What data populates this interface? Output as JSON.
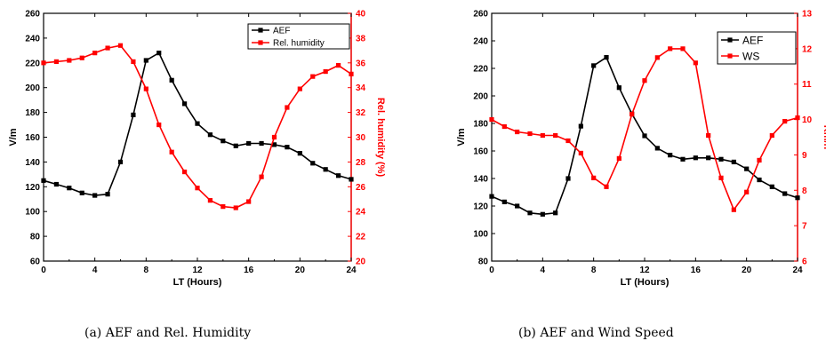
{
  "chart_data": [
    {
      "type": "line",
      "x": [
        0,
        1,
        2,
        3,
        4,
        5,
        6,
        7,
        8,
        9,
        10,
        11,
        12,
        13,
        14,
        15,
        16,
        17,
        18,
        19,
        20,
        21,
        22,
        23,
        24
      ],
      "xlabel": "LT (Hours)",
      "xlim": [
        0,
        24
      ],
      "xticks": [
        0,
        4,
        8,
        12,
        16,
        20,
        24
      ],
      "ylabel": "V/m",
      "ylim": [
        60,
        260
      ],
      "yticks": [
        60,
        80,
        100,
        120,
        140,
        160,
        180,
        200,
        220,
        240,
        260
      ],
      "y2label": "Rel. humidity (%)",
      "y2lim": [
        20,
        40
      ],
      "y2ticks": [
        20,
        22,
        24,
        26,
        28,
        30,
        32,
        34,
        36,
        38,
        40
      ],
      "legend_position": "top-right",
      "series": [
        {
          "name": "AEF",
          "axis": "left",
          "color": "#000000",
          "values": [
            125,
            122,
            119,
            115,
            113,
            114,
            140,
            178,
            222,
            228,
            206,
            187,
            171,
            162,
            157,
            153,
            155,
            155,
            154,
            152,
            147,
            139,
            134,
            129,
            126
          ]
        },
        {
          "name": "Rel. humidity",
          "axis": "right",
          "color": "#ff0000",
          "values": [
            36.0,
            36.1,
            36.2,
            36.4,
            36.8,
            37.2,
            37.4,
            36.1,
            33.9,
            31.0,
            28.8,
            27.2,
            25.9,
            24.9,
            24.4,
            24.3,
            24.8,
            26.8,
            30.0,
            32.4,
            33.9,
            34.9,
            35.3,
            35.8,
            35.1
          ]
        }
      ]
    },
    {
      "type": "line",
      "x": [
        0,
        1,
        2,
        3,
        4,
        5,
        6,
        7,
        8,
        9,
        10,
        11,
        12,
        13,
        14,
        15,
        16,
        17,
        18,
        19,
        20,
        21,
        22,
        23,
        24
      ],
      "xlabel": "LT (Hours)",
      "xlim": [
        0,
        24
      ],
      "xticks": [
        0,
        4,
        8,
        12,
        16,
        20,
        24
      ],
      "ylabel": "V/m",
      "ylim": [
        80,
        260
      ],
      "yticks": [
        80,
        100,
        120,
        140,
        160,
        180,
        200,
        220,
        240,
        260
      ],
      "y2label": "Km/h",
      "y2lim": [
        6,
        13
      ],
      "y2ticks": [
        6,
        7,
        8,
        9,
        10,
        11,
        12,
        13
      ],
      "legend_position": "top-right",
      "series": [
        {
          "name": "AEF",
          "axis": "left",
          "color": "#000000",
          "values": [
            127,
            123,
            120,
            115,
            114,
            115,
            140,
            178,
            222,
            228,
            206,
            187,
            171,
            162,
            157,
            154,
            155,
            155,
            154,
            152,
            147,
            139,
            134,
            129,
            126
          ]
        },
        {
          "name": "WS",
          "axis": "right",
          "color": "#ff0000",
          "values": [
            10.0,
            9.8,
            9.65,
            9.6,
            9.55,
            9.55,
            9.4,
            9.05,
            8.35,
            8.1,
            8.9,
            10.15,
            11.1,
            11.75,
            12.0,
            12.0,
            11.6,
            9.55,
            8.35,
            7.45,
            7.95,
            8.85,
            9.55,
            9.95,
            10.05
          ]
        }
      ]
    }
  ],
  "captions": {
    "a": "(a) AEF and Rel. Humidity",
    "b": "(b) AEF and Wind Speed"
  }
}
